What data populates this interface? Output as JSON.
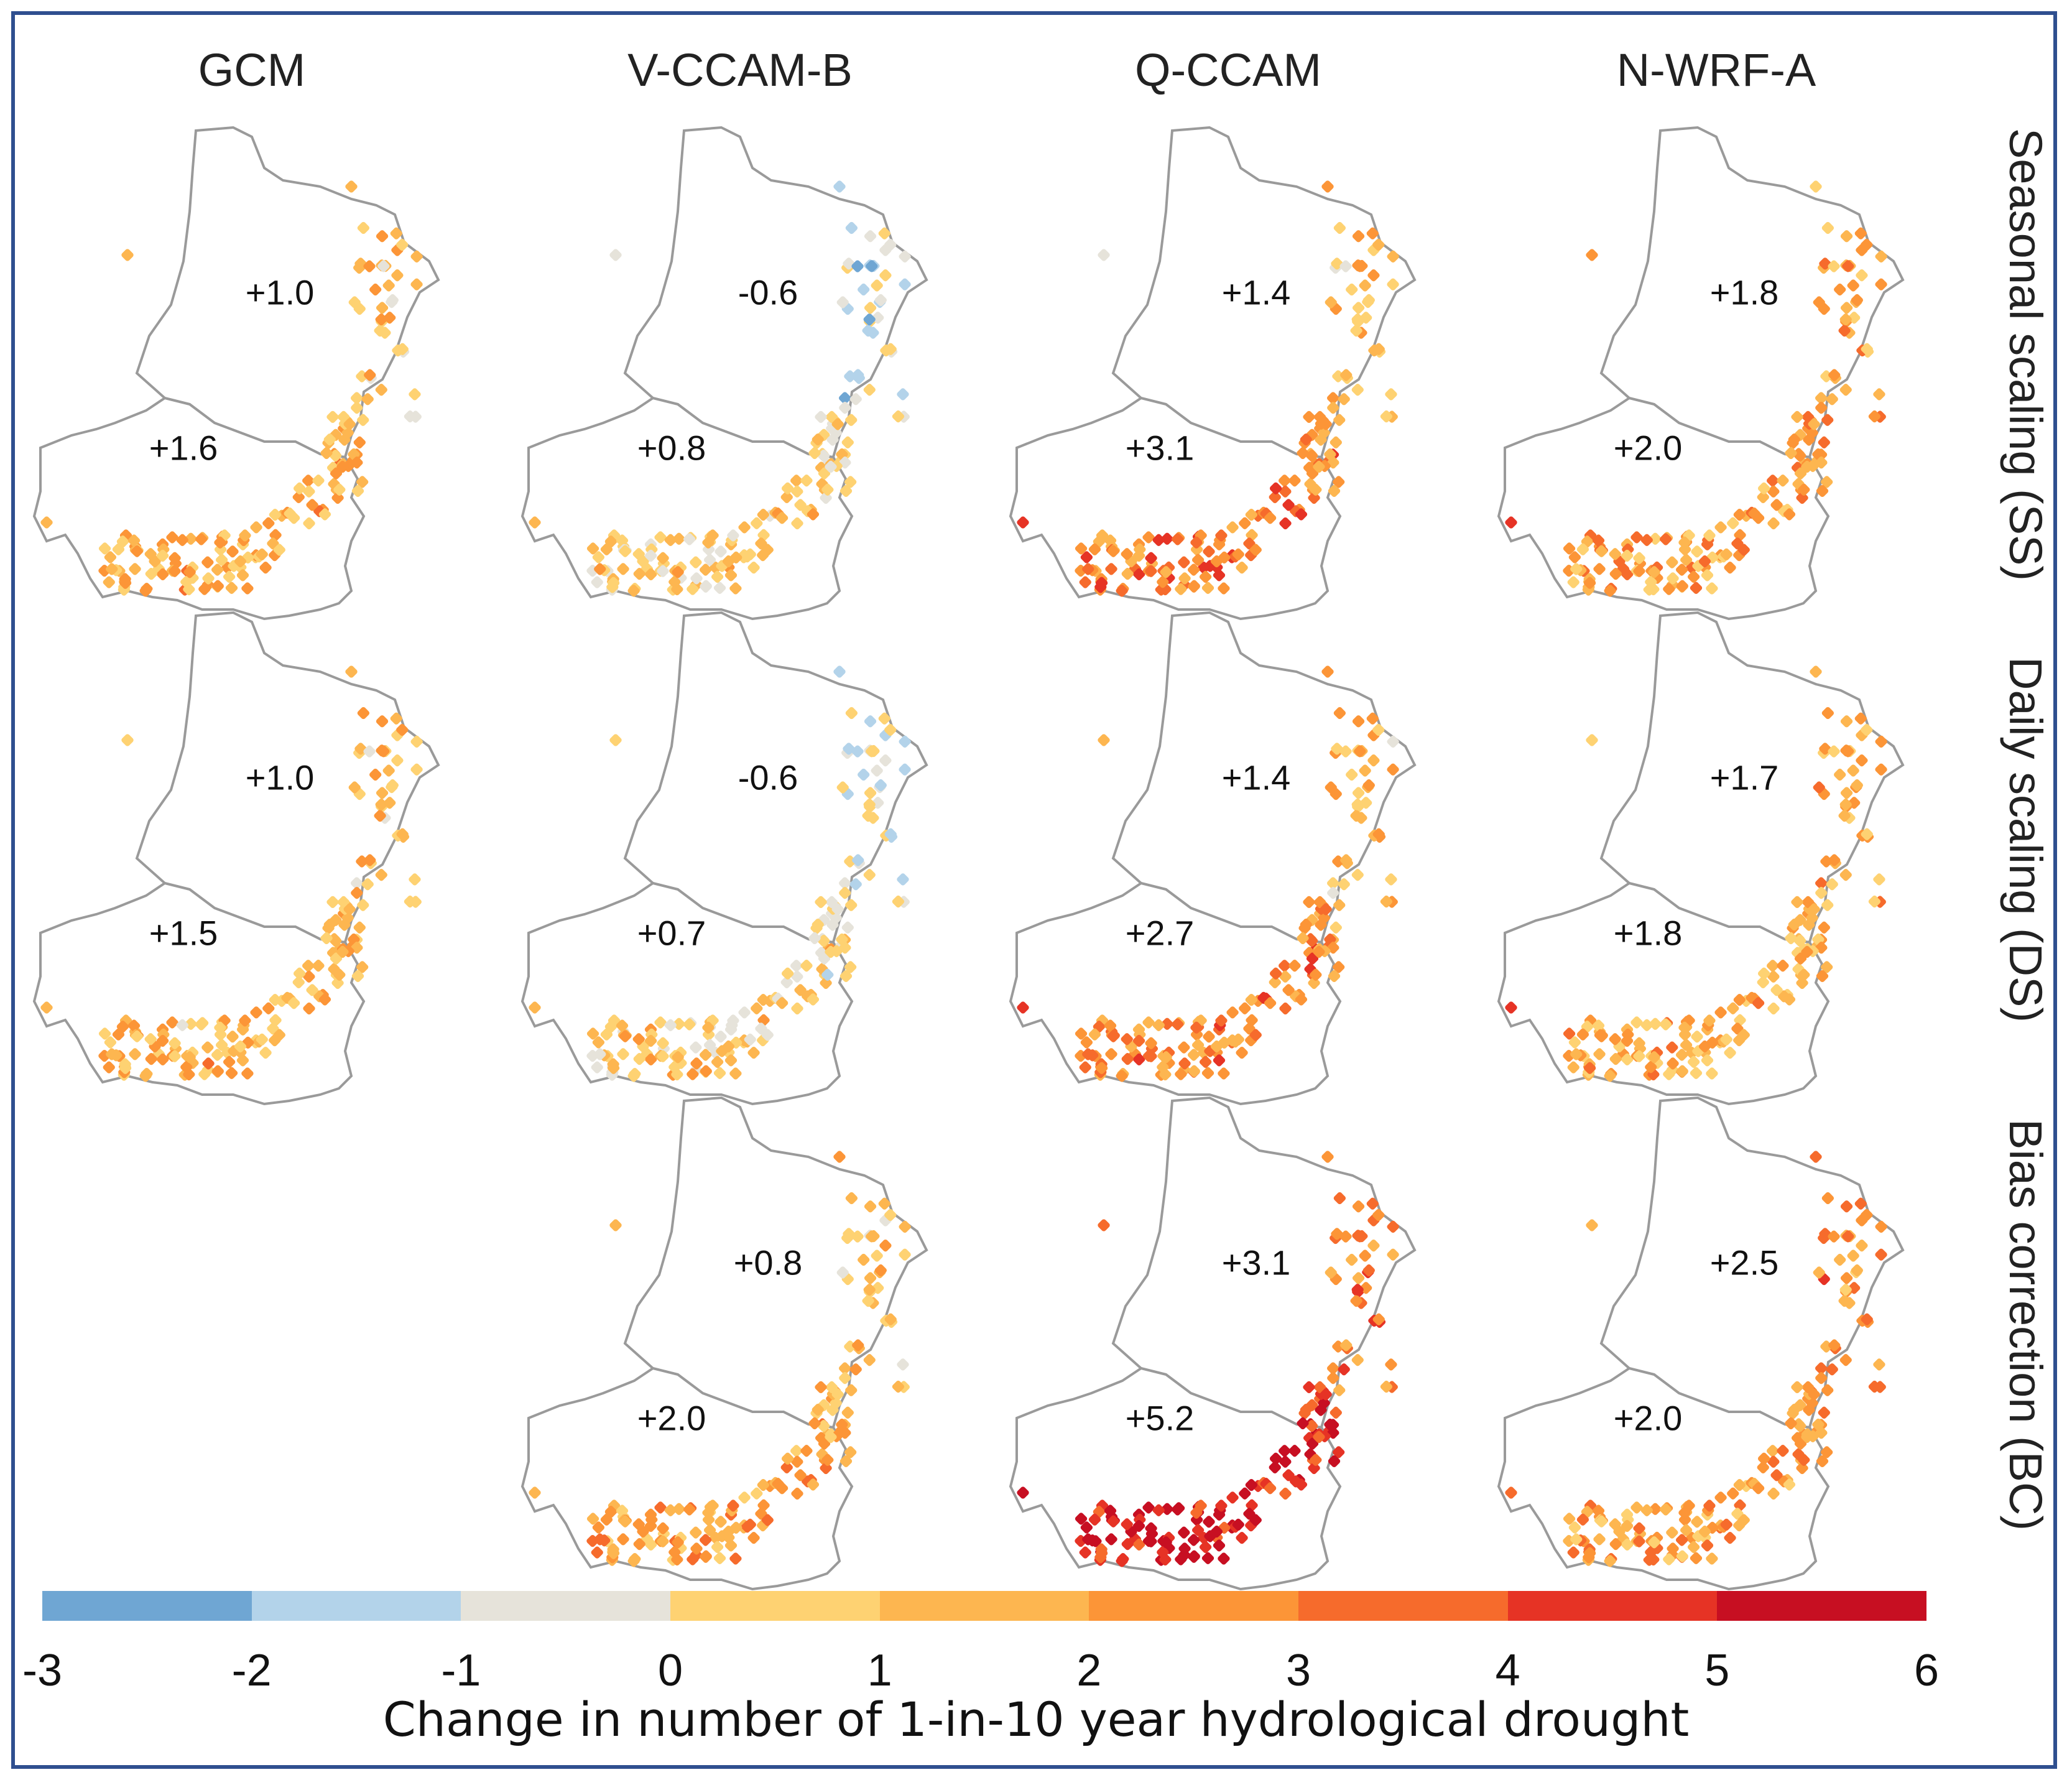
{
  "columns": [
    "GCM",
    "V-CCAM-B",
    "Q-CCAM",
    "N-WRF-A"
  ],
  "rows": [
    "Seasonal scaling (SS)",
    "Daily scaling (DS)",
    "Bias correction (BC)"
  ],
  "panels": [
    {
      "row": 0,
      "col": 0,
      "north": "+1.0",
      "south": "+1.6"
    },
    {
      "row": 0,
      "col": 1,
      "north": "-0.6",
      "south": "+0.8"
    },
    {
      "row": 0,
      "col": 2,
      "north": "+1.4",
      "south": "+3.1"
    },
    {
      "row": 0,
      "col": 3,
      "north": "+1.8",
      "south": "+2.0"
    },
    {
      "row": 1,
      "col": 0,
      "north": "+1.0",
      "south": "+1.5"
    },
    {
      "row": 1,
      "col": 1,
      "north": "-0.6",
      "south": "+0.7"
    },
    {
      "row": 1,
      "col": 2,
      "north": "+1.4",
      "south": "+2.7"
    },
    {
      "row": 1,
      "col": 3,
      "north": "+1.7",
      "south": "+1.8"
    },
    {
      "row": 2,
      "col": 1,
      "north": "+0.8",
      "south": "+2.0"
    },
    {
      "row": 2,
      "col": 2,
      "north": "+3.1",
      "south": "+5.2"
    },
    {
      "row": 2,
      "col": 3,
      "north": "+2.5",
      "south": "+2.0"
    }
  ],
  "colorbar": {
    "label": "Change in number of 1-in-10 year hydrological drought",
    "ticks": [
      "-3",
      "-2",
      "-1",
      "0",
      "1",
      "2",
      "3",
      "4",
      "5",
      "6"
    ],
    "colors": [
      "#6fa6d3",
      "#b3d3ea",
      "#e6e3da",
      "#fed272",
      "#fdb650",
      "#fc9537",
      "#f66b2c",
      "#e63325",
      "#c70f22"
    ]
  }
}
